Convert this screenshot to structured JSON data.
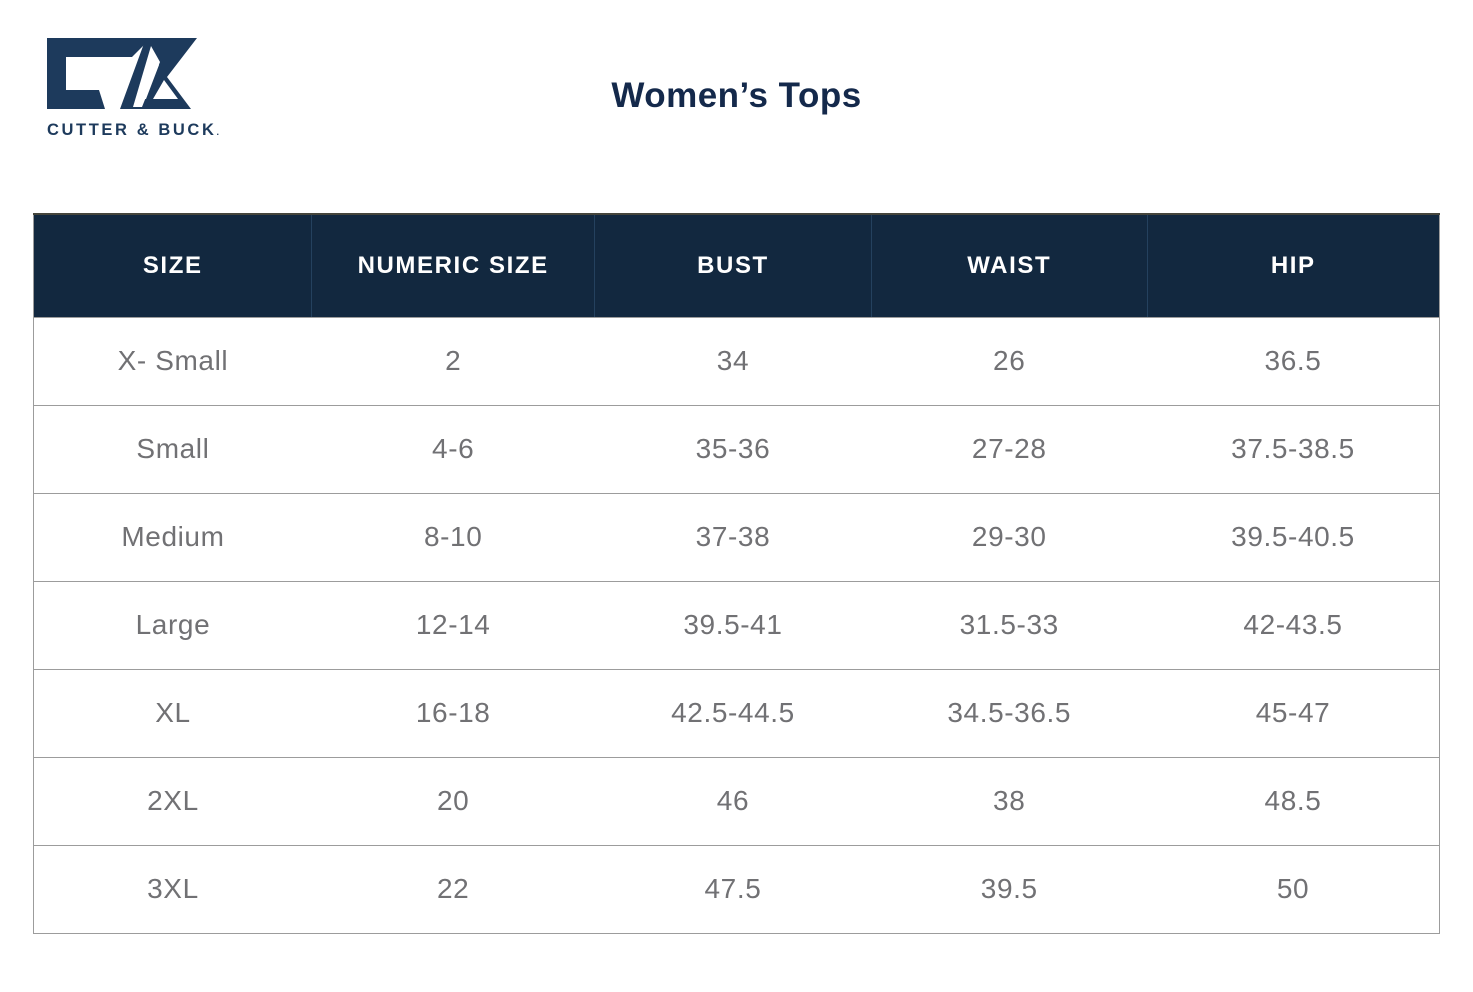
{
  "brand": {
    "name": "CUTTER & BUCK",
    "trailing_mark": ".",
    "logo": "cutter-and-buck-cb-monogram"
  },
  "title": "Women’s Tops",
  "colors": {
    "brand_navy": "#1d3a5c",
    "title_navy": "#14294b",
    "header_bg": "#12283f",
    "header_text": "#ffffff",
    "header_divider": "#24415e",
    "body_text": "#717174",
    "grid_border": "#9c9c9c"
  },
  "table": {
    "columns": [
      "SIZE",
      "NUMERIC SIZE",
      "BUST",
      "WAIST",
      "HIP"
    ],
    "rows": [
      [
        "X- Small",
        "2",
        "34",
        "26",
        "36.5"
      ],
      [
        "Small",
        "4-6",
        "35-36",
        "27-28",
        "37.5-38.5"
      ],
      [
        "Medium",
        "8-10",
        "37-38",
        "29-30",
        "39.5-40.5"
      ],
      [
        "Large",
        "12-14",
        "39.5-41",
        "31.5-33",
        "42-43.5"
      ],
      [
        "XL",
        "16-18",
        "42.5-44.5",
        "34.5-36.5",
        "45-47"
      ],
      [
        "2XL",
        "20",
        "46",
        "38",
        "48.5"
      ],
      [
        "3XL",
        "22",
        "47.5",
        "39.5",
        "50"
      ]
    ]
  }
}
